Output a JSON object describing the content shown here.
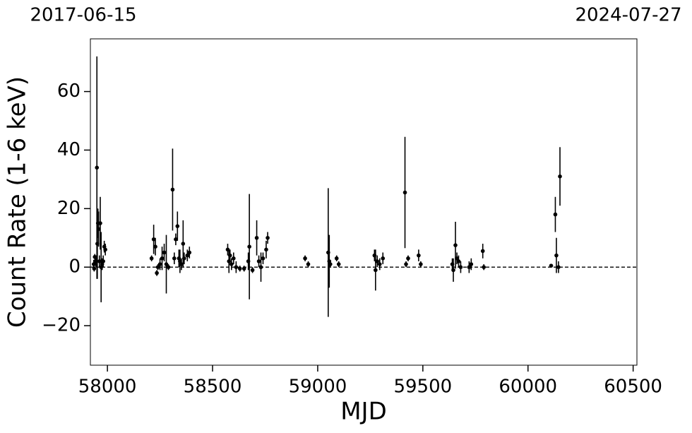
{
  "chart_data": {
    "type": "scatter",
    "top_left_label": "2017-06-15",
    "top_right_label": "2024-07-27",
    "x_label": "MJD",
    "y_label": "Count Rate (1-6 keV)",
    "xlim": [
      57919,
      60518
    ],
    "ylim": [
      -33.5,
      78
    ],
    "xticks": [
      58000,
      58500,
      59000,
      59500,
      60000,
      60500
    ],
    "yticks": [
      {
        "value": -20,
        "label": "−20"
      },
      0,
      20,
      40,
      60
    ],
    "hline": 0,
    "color": "#000000",
    "x": [
      57935,
      57937,
      57940,
      57945,
      57950,
      57952,
      57955,
      57958,
      57962,
      57966,
      57970,
      57975,
      57980,
      57985,
      57990,
      58210,
      58220,
      58228,
      58235,
      58240,
      58250,
      58260,
      58270,
      58280,
      58290,
      58310,
      58318,
      58325,
      58333,
      58340,
      58345,
      58352,
      58360,
      58365,
      58380,
      58390,
      58572,
      58578,
      58583,
      58590,
      58600,
      58612,
      58630,
      58650,
      58670,
      58675,
      58690,
      58710,
      58720,
      58730,
      58740,
      58755,
      58762,
      58940,
      58955,
      59050,
      59055,
      59060,
      59090,
      59100,
      59270,
      59275,
      59283,
      59295,
      59310,
      59415,
      59420,
      59430,
      59480,
      59490,
      59640,
      59645,
      59655,
      59662,
      59670,
      59680,
      59720,
      59730,
      59785,
      59790,
      60110,
      60130,
      60135,
      60145,
      60152
    ],
    "values": [
      1,
      -0.5,
      3.5,
      2,
      34,
      8,
      15,
      13,
      2,
      15,
      0,
      1,
      2,
      7,
      6,
      3,
      9.5,
      7,
      -2,
      0,
      1,
      3,
      5,
      1,
      0,
      26.5,
      3,
      9.5,
      14,
      3,
      2,
      1,
      8,
      3,
      4,
      5,
      6,
      2,
      4,
      1,
      3,
      0,
      -0.5,
      -0.5,
      2,
      7,
      -1,
      10,
      2,
      0,
      3,
      6,
      10,
      3,
      1,
      5,
      2,
      1,
      3,
      1,
      4,
      -1,
      2,
      1,
      3,
      25.5,
      1,
      3,
      4,
      1,
      1,
      -1,
      7.5,
      3,
      2,
      0,
      0,
      1,
      5.5,
      0,
      0.5,
      18,
      4,
      0,
      31
    ],
    "errors": [
      1.5,
      1,
      1,
      2,
      38,
      12,
      5,
      6,
      2,
      9,
      12,
      2,
      2,
      2,
      2,
      1,
      5,
      3,
      1,
      1,
      2,
      4,
      3,
      10,
      1,
      14,
      2,
      2,
      5,
      3,
      4,
      2,
      8,
      2,
      2,
      2,
      2,
      4,
      2,
      2,
      2,
      2,
      1,
      1,
      3,
      18,
      1,
      6,
      2,
      5,
      2,
      3,
      2,
      1,
      1,
      22,
      9,
      1,
      1,
      1,
      2,
      7,
      2,
      2,
      2,
      19,
      1,
      1,
      2,
      1,
      2,
      4,
      8,
      2,
      2,
      2,
      2,
      2,
      2.5,
      1,
      0.5,
      6,
      6,
      2,
      10
    ]
  }
}
